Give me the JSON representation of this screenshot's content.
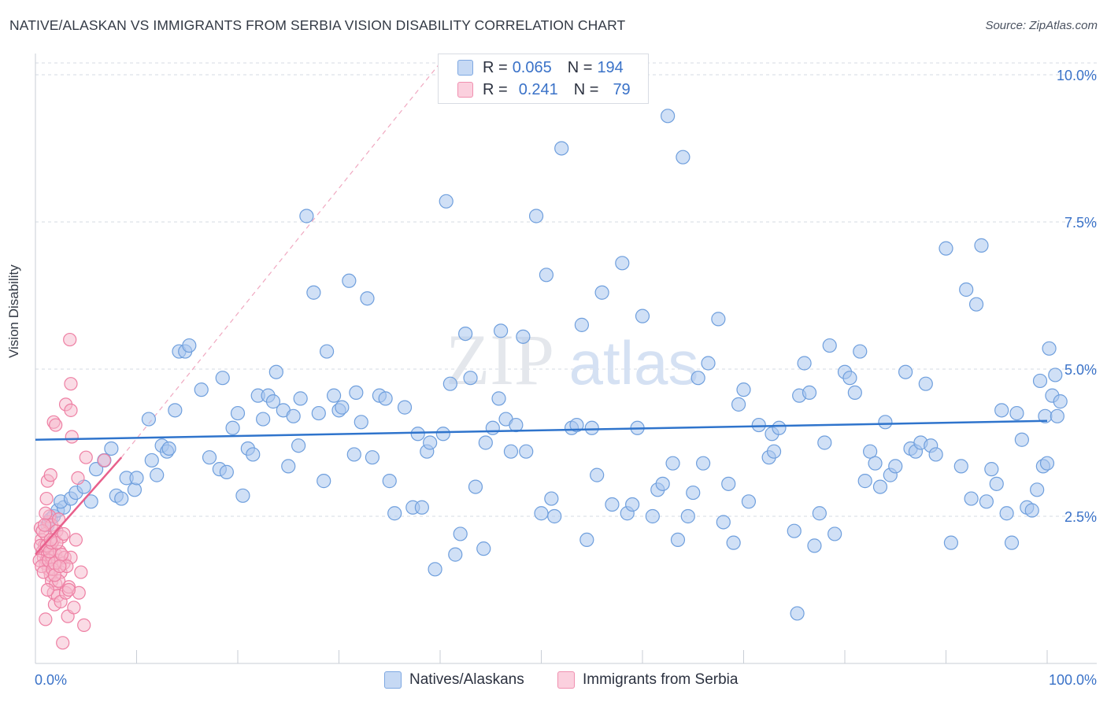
{
  "title": "NATIVE/ALASKAN VS IMMIGRANTS FROM SERBIA VISION DISABILITY CORRELATION CHART",
  "source": "Source: ZipAtlas.com",
  "watermark": {
    "left": "ZIP",
    "right": "atlas"
  },
  "legend": {
    "series1": {
      "r_label": "R =",
      "r_value": "0.065",
      "n_label": "N =",
      "n_value": "194"
    },
    "series2": {
      "r_label": "R =",
      "r_value": "0.241",
      "n_label": "N =",
      "n_value": "79"
    }
  },
  "bottom_legend": {
    "series1": "Natives/Alaskans",
    "series2": "Immigrants from Serbia"
  },
  "colors": {
    "blue_fill": "#a9c6ee",
    "blue_stroke": "#6f9fdd",
    "blue_line": "#2f74cc",
    "pink_fill": "#f6b7cb",
    "pink_stroke": "#ee7fa3",
    "pink_line": "#e8608c",
    "grid": "#d6dbe3",
    "axis_label": "#3a72c8"
  },
  "chart_data": {
    "type": "scatter",
    "title": "NATIVE/ALASKAN VS IMMIGRANTS FROM SERBIA VISION DISABILITY CORRELATION CHART",
    "xlabel": "",
    "ylabel": "Vision Disability",
    "x_unit": "%",
    "xlim": [
      0,
      100
    ],
    "ylim": [
      0,
      10.2
    ],
    "x_tick_labels": [
      "0.0%",
      "100.0%"
    ],
    "y_ticks": [
      2.5,
      5.0,
      7.5,
      10.0
    ],
    "y_tick_labels": [
      "2.5%",
      "5.0%",
      "7.5%",
      "10.0%"
    ],
    "grid": true,
    "series": [
      {
        "name": "Natives/Alaskans",
        "trend": {
          "x0": 0,
          "y0": 3.8,
          "x1": 100,
          "y1": 4.12
        },
        "points": [
          [
            1.5,
            2.45
          ],
          [
            1.2,
            2.35
          ],
          [
            1.8,
            2.5
          ],
          [
            2.2,
            2.6
          ],
          [
            2.8,
            2.65
          ],
          [
            2.5,
            2.75
          ],
          [
            3.5,
            2.8
          ],
          [
            4.0,
            2.9
          ],
          [
            4.8,
            3.0
          ],
          [
            5.5,
            2.75
          ],
          [
            6.0,
            3.3
          ],
          [
            6.8,
            3.45
          ],
          [
            7.5,
            3.65
          ],
          [
            8.0,
            2.85
          ],
          [
            8.5,
            2.8
          ],
          [
            9.0,
            3.15
          ],
          [
            9.8,
            2.95
          ],
          [
            10.0,
            3.15
          ],
          [
            11.2,
            4.15
          ],
          [
            11.5,
            3.45
          ],
          [
            12.0,
            3.2
          ],
          [
            12.5,
            3.7
          ],
          [
            13.0,
            3.6
          ],
          [
            13.2,
            3.65
          ],
          [
            13.8,
            4.3
          ],
          [
            14.2,
            5.3
          ],
          [
            14.8,
            5.3
          ],
          [
            15.2,
            5.4
          ],
          [
            16.4,
            4.65
          ],
          [
            17.2,
            3.5
          ],
          [
            18.2,
            3.3
          ],
          [
            18.5,
            4.85
          ],
          [
            18.9,
            3.25
          ],
          [
            19.5,
            4.0
          ],
          [
            20.0,
            4.25
          ],
          [
            20.5,
            2.85
          ],
          [
            21.0,
            3.65
          ],
          [
            21.5,
            3.55
          ],
          [
            22.0,
            4.55
          ],
          [
            22.5,
            4.15
          ],
          [
            23.0,
            4.55
          ],
          [
            23.5,
            4.45
          ],
          [
            23.8,
            4.95
          ],
          [
            24.5,
            4.3
          ],
          [
            25.0,
            3.35
          ],
          [
            25.5,
            4.2
          ],
          [
            26.0,
            3.7
          ],
          [
            26.2,
            4.5
          ],
          [
            26.8,
            7.6
          ],
          [
            27.5,
            6.3
          ],
          [
            28.0,
            4.25
          ],
          [
            28.5,
            3.1
          ],
          [
            28.8,
            5.3
          ],
          [
            29.5,
            4.55
          ],
          [
            30.0,
            4.3
          ],
          [
            30.3,
            4.35
          ],
          [
            31.0,
            6.5
          ],
          [
            31.5,
            3.55
          ],
          [
            31.7,
            4.6
          ],
          [
            32.2,
            4.1
          ],
          [
            32.8,
            6.2
          ],
          [
            33.3,
            3.5
          ],
          [
            34.0,
            4.55
          ],
          [
            34.6,
            4.5
          ],
          [
            35.0,
            3.1
          ],
          [
            35.5,
            2.55
          ],
          [
            36.5,
            4.35
          ],
          [
            37.3,
            2.65
          ],
          [
            37.8,
            3.9
          ],
          [
            38.2,
            2.65
          ],
          [
            38.7,
            3.6
          ],
          [
            39.0,
            3.75
          ],
          [
            39.5,
            1.6
          ],
          [
            40.3,
            3.9
          ],
          [
            40.6,
            7.85
          ],
          [
            41.0,
            4.75
          ],
          [
            41.5,
            1.85
          ],
          [
            42.0,
            2.2
          ],
          [
            42.5,
            5.6
          ],
          [
            43.0,
            4.85
          ],
          [
            43.5,
            3.0
          ],
          [
            44.3,
            1.95
          ],
          [
            44.5,
            3.75
          ],
          [
            45.2,
            4.0
          ],
          [
            45.8,
            4.5
          ],
          [
            46.0,
            5.65
          ],
          [
            46.5,
            4.15
          ],
          [
            47.0,
            3.6
          ],
          [
            47.5,
            4.05
          ],
          [
            48.2,
            5.55
          ],
          [
            48.5,
            3.6
          ],
          [
            49.5,
            7.6
          ],
          [
            50.0,
            2.55
          ],
          [
            50.5,
            6.6
          ],
          [
            51.0,
            2.8
          ],
          [
            51.3,
            2.5
          ],
          [
            52.0,
            8.75
          ],
          [
            53.0,
            4.0
          ],
          [
            53.5,
            4.05
          ],
          [
            54.0,
            5.75
          ],
          [
            54.5,
            2.1
          ],
          [
            55.0,
            4.0
          ],
          [
            55.5,
            3.2
          ],
          [
            56.0,
            6.3
          ],
          [
            57.0,
            2.7
          ],
          [
            58.0,
            6.8
          ],
          [
            58.5,
            2.55
          ],
          [
            59.0,
            2.7
          ],
          [
            59.5,
            4.0
          ],
          [
            60.0,
            5.9
          ],
          [
            61.0,
            2.5
          ],
          [
            61.5,
            2.95
          ],
          [
            62.0,
            3.05
          ],
          [
            62.5,
            9.3
          ],
          [
            63.0,
            3.4
          ],
          [
            63.5,
            2.1
          ],
          [
            64.0,
            8.6
          ],
          [
            64.5,
            2.5
          ],
          [
            65.0,
            2.9
          ],
          [
            65.5,
            4.85
          ],
          [
            66.0,
            3.4
          ],
          [
            66.5,
            5.1
          ],
          [
            67.5,
            5.85
          ],
          [
            68.0,
            2.4
          ],
          [
            68.5,
            3.05
          ],
          [
            69.0,
            2.05
          ],
          [
            69.5,
            4.4
          ],
          [
            70.0,
            4.65
          ],
          [
            70.5,
            2.75
          ],
          [
            71.5,
            4.05
          ],
          [
            72.5,
            3.5
          ],
          [
            72.8,
            3.9
          ],
          [
            73.0,
            3.6
          ],
          [
            73.5,
            4.0
          ],
          [
            75.0,
            2.25
          ],
          [
            75.5,
            4.55
          ],
          [
            76.0,
            5.1
          ],
          [
            76.5,
            4.6
          ],
          [
            77.0,
            2.0
          ],
          [
            77.5,
            2.55
          ],
          [
            78.0,
            3.75
          ],
          [
            78.5,
            5.4
          ],
          [
            79.0,
            2.2
          ],
          [
            80.0,
            4.95
          ],
          [
            80.5,
            4.85
          ],
          [
            81.0,
            4.6
          ],
          [
            81.5,
            5.3
          ],
          [
            82.0,
            3.1
          ],
          [
            82.5,
            3.6
          ],
          [
            83.0,
            3.4
          ],
          [
            83.5,
            3.0
          ],
          [
            84.0,
            4.1
          ],
          [
            84.5,
            3.2
          ],
          [
            85.0,
            3.35
          ],
          [
            86.0,
            4.95
          ],
          [
            86.5,
            3.65
          ],
          [
            87.0,
            3.6
          ],
          [
            87.5,
            3.75
          ],
          [
            88.0,
            4.75
          ],
          [
            88.5,
            3.7
          ],
          [
            89.0,
            3.55
          ],
          [
            90.0,
            7.05
          ],
          [
            90.5,
            2.05
          ],
          [
            91.5,
            3.35
          ],
          [
            92.0,
            6.35
          ],
          [
            92.5,
            2.8
          ],
          [
            93.0,
            6.1
          ],
          [
            93.5,
            7.1
          ],
          [
            94.0,
            2.75
          ],
          [
            94.5,
            3.3
          ],
          [
            95.0,
            3.05
          ],
          [
            95.5,
            4.3
          ],
          [
            96.0,
            2.55
          ],
          [
            96.5,
            2.05
          ],
          [
            97.0,
            4.25
          ],
          [
            97.5,
            3.8
          ],
          [
            98.0,
            2.65
          ],
          [
            98.5,
            2.6
          ],
          [
            99.0,
            2.95
          ],
          [
            99.3,
            4.8
          ],
          [
            99.6,
            3.35
          ],
          [
            99.8,
            4.2
          ],
          [
            100.0,
            3.4
          ],
          [
            100.2,
            5.35
          ],
          [
            100.5,
            4.55
          ],
          [
            100.8,
            4.9
          ],
          [
            101.0,
            4.2
          ],
          [
            101.3,
            4.45
          ],
          [
            75.3,
            0.85
          ]
        ]
      },
      {
        "name": "Immigrants from Serbia",
        "trend": {
          "x0": 0,
          "y0": 1.85,
          "x1": 8.5,
          "y1": 3.5
        },
        "trend_extension": {
          "x0": 8.5,
          "y0": 3.5,
          "x1": 40,
          "y1": 10.2
        },
        "points": [
          [
            0.5,
            2.3
          ],
          [
            0.6,
            2.1
          ],
          [
            0.7,
            1.9
          ],
          [
            0.8,
            1.8
          ],
          [
            0.9,
            2.0
          ],
          [
            1.0,
            1.7
          ],
          [
            1.0,
            2.2
          ],
          [
            1.1,
            1.75
          ],
          [
            1.2,
            1.85
          ],
          [
            1.3,
            2.4
          ],
          [
            1.3,
            1.6
          ],
          [
            1.4,
            2.5
          ],
          [
            1.5,
            1.5
          ],
          [
            1.5,
            1.95
          ],
          [
            1.6,
            2.35
          ],
          [
            1.6,
            1.4
          ],
          [
            1.7,
            1.8
          ],
          [
            1.8,
            1.2
          ],
          [
            1.8,
            2.1
          ],
          [
            1.9,
            1.0
          ],
          [
            2.0,
            1.85
          ],
          [
            2.0,
            1.35
          ],
          [
            2.1,
            2.25
          ],
          [
            2.2,
            1.15
          ],
          [
            2.2,
            1.75
          ],
          [
            2.3,
            2.45
          ],
          [
            2.4,
            1.9
          ],
          [
            2.5,
            1.05
          ],
          [
            2.5,
            1.55
          ],
          [
            2.6,
            2.15
          ],
          [
            2.7,
            0.35
          ],
          [
            2.8,
            1.7
          ],
          [
            2.9,
            1.8
          ],
          [
            3.0,
            4.4
          ],
          [
            3.0,
            1.2
          ],
          [
            3.2,
            0.8
          ],
          [
            3.3,
            1.3
          ],
          [
            3.4,
            5.5
          ],
          [
            3.5,
            4.75
          ],
          [
            3.5,
            1.8
          ],
          [
            3.6,
            3.85
          ],
          [
            3.8,
            0.95
          ],
          [
            4.0,
            2.1
          ],
          [
            4.2,
            3.15
          ],
          [
            4.3,
            1.2
          ],
          [
            4.5,
            1.55
          ],
          [
            4.8,
            0.65
          ],
          [
            5.0,
            3.5
          ],
          [
            6.8,
            3.45
          ],
          [
            1.0,
            2.55
          ],
          [
            1.2,
            3.1
          ],
          [
            1.5,
            3.2
          ],
          [
            1.8,
            4.1
          ],
          [
            2.0,
            4.05
          ],
          [
            3.5,
            4.3
          ],
          [
            0.4,
            1.75
          ],
          [
            0.5,
            2.0
          ],
          [
            0.6,
            1.65
          ],
          [
            0.7,
            2.25
          ],
          [
            0.8,
            1.55
          ],
          [
            0.9,
            2.35
          ],
          [
            1.0,
            0.75
          ],
          [
            1.1,
            2.0
          ],
          [
            1.2,
            1.25
          ],
          [
            1.3,
            1.75
          ],
          [
            1.4,
            1.9
          ],
          [
            1.6,
            2.05
          ],
          [
            1.7,
            1.6
          ],
          [
            1.9,
            1.7
          ],
          [
            2.1,
            2.05
          ],
          [
            2.3,
            1.4
          ],
          [
            2.6,
            1.85
          ],
          [
            2.8,
            2.2
          ],
          [
            3.1,
            1.65
          ],
          [
            3.3,
            1.25
          ],
          [
            1.1,
            2.8
          ],
          [
            1.5,
            2.1
          ],
          [
            1.9,
            1.5
          ],
          [
            2.4,
            1.65
          ]
        ]
      }
    ]
  }
}
